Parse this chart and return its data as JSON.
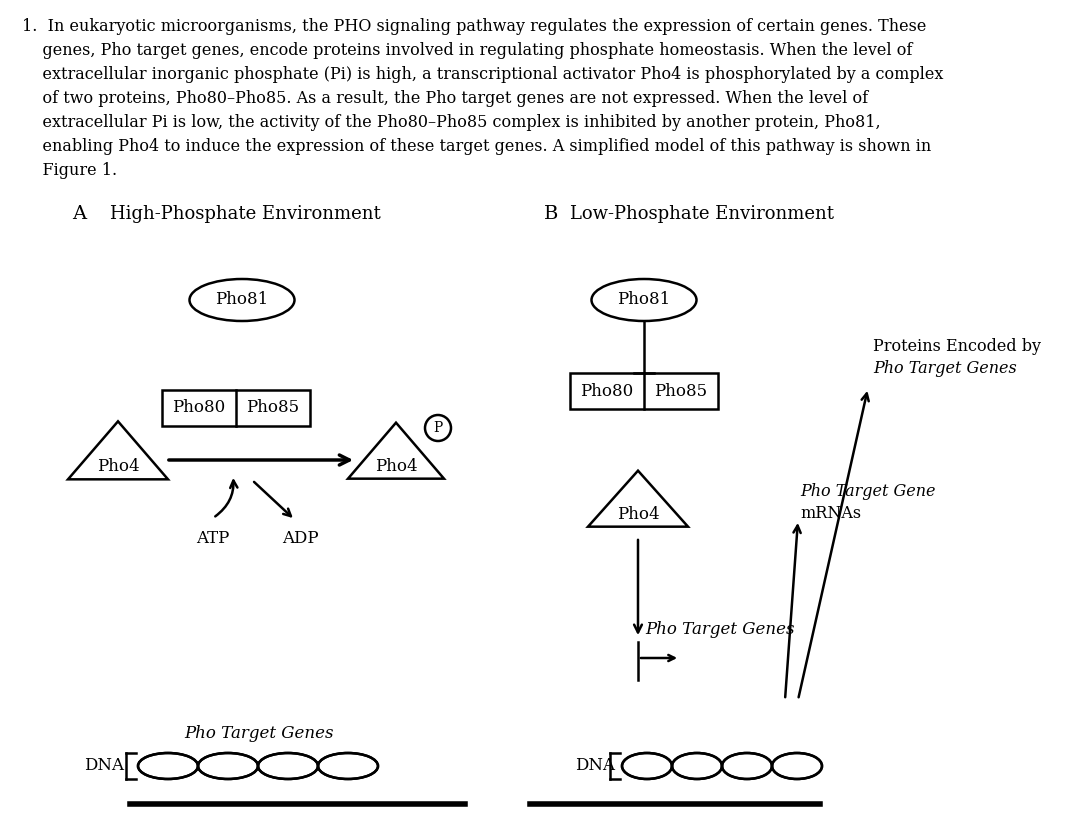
{
  "bg": "#ffffff",
  "para_lines": [
    [
      "1.  In eukaryotic microorganisms, the PHO signaling pathway regulates the expression of certain genes. These",
      false
    ],
    [
      "    genes, ",
      false,
      "Pho",
      true,
      " target genes, encode proteins involved in regulating phosphate homeostasis. When the level of",
      false
    ],
    [
      "    extracellular inorganic phosphate (Pi) is high, a transcriptional activator Pho4 is phosphorylated by a complex",
      false
    ],
    [
      "    of two proteins, Pho80–Pho85. As a result, the ",
      false,
      "Pho",
      true,
      " target genes are not expressed. When the level of",
      false
    ],
    [
      "    extracellular Pi is low, the activity of the Pho80–Pho85 complex is inhibited by another protein, Pho81,",
      false
    ],
    [
      "    enabling Pho4 to induce the expression of these target genes. A simplified model of this pathway is shown in",
      false
    ],
    [
      "    Figure 1.",
      false
    ]
  ]
}
